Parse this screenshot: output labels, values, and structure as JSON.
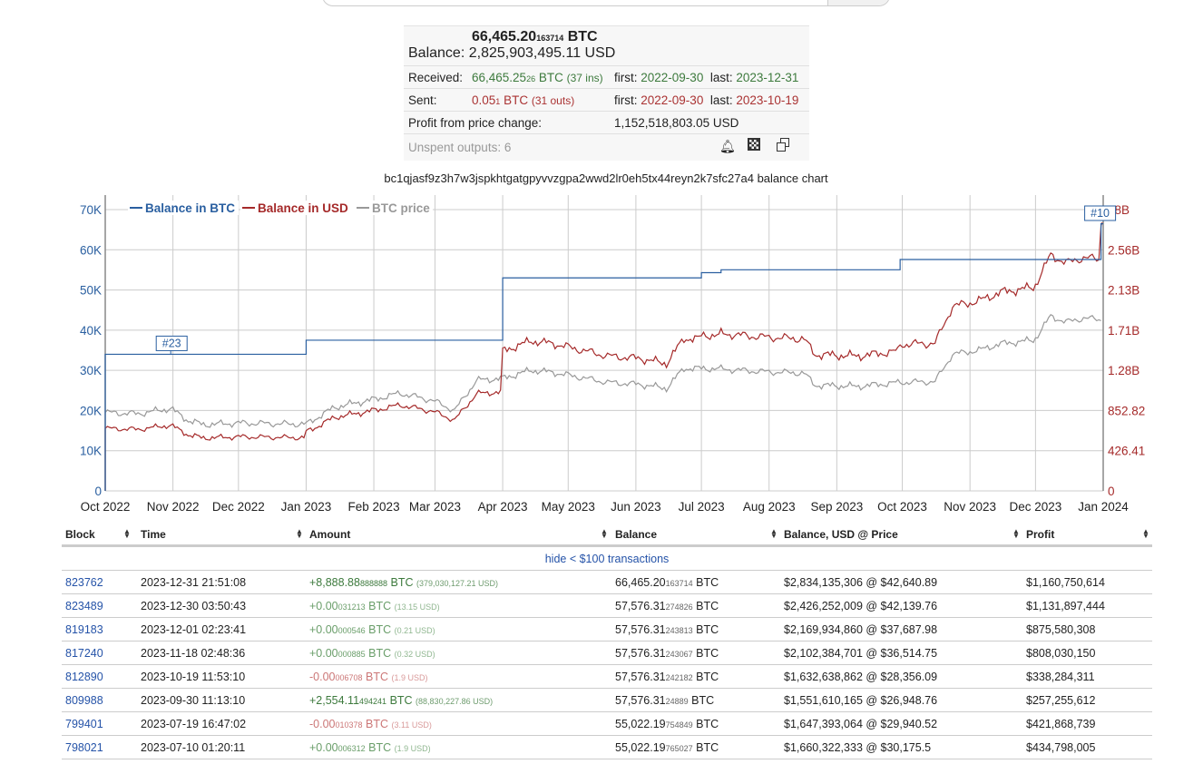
{
  "summary": {
    "balance_btc_main": "66,465.20",
    "balance_btc_small": "163714",
    "btc_unit": "BTC",
    "balance_label": "Balance:",
    "balance_usd": "2,825,903,495.11 USD",
    "received_label": "Received:",
    "received_main": "66,465.25",
    "received_small": "26",
    "received_unit": "BTC",
    "received_ins": "(37 ins)",
    "received_first_label": "first:",
    "received_first": "2022-09-30",
    "received_last_label": "last:",
    "received_last": "2023-12-31",
    "sent_label": "Sent:",
    "sent_main": "0.05",
    "sent_small": "1",
    "sent_unit": "BTC",
    "sent_outs": "(31 outs)",
    "sent_first_label": "first:",
    "sent_first": "2022-09-30",
    "sent_last_label": "last:",
    "sent_last": "2023-10-19",
    "profit_label": "Profit from price change:",
    "profit_value": "1,152,518,803.05 USD",
    "unspent": "Unspent outputs: 6",
    "icons": [
      "bell-icon",
      "qr-code-icon",
      "copy-icon"
    ]
  },
  "chart_title": "bc1qjasf9z3h7w3jspkhtgatgpyvvzgpa2wwd2lr0eh5tx44reyn2k7sfc27a4 balance chart",
  "chart_data": {
    "type": "line",
    "legend": [
      "Balance in BTC",
      "Balance in USD",
      "BTC price"
    ],
    "legend_position": "top-left",
    "colors": {
      "btc": "#2a5fa0",
      "usd": "#a52a2a",
      "price": "#999999"
    },
    "x_ticks": [
      "Oct 2022",
      "Nov 2022",
      "Dec 2022",
      "Jan 2023",
      "Feb 2023",
      "Mar 2023",
      "Apr 2023",
      "May 2023",
      "Jun 2023",
      "Jul 2023",
      "Aug 2023",
      "Sep 2023",
      "Oct 2023",
      "Nov 2023",
      "Dec 2023",
      "Jan 2024"
    ],
    "y_left_ticks": [
      "0",
      "10K",
      "20K",
      "30K",
      "40K",
      "50K",
      "60K",
      "70K"
    ],
    "y_right_ticks": [
      "0",
      "426.41",
      "852.82",
      "1.28B",
      "1.71B",
      "2.13B",
      "2.56B",
      "98B"
    ],
    "ylim_left": [
      0,
      70000
    ],
    "xlim_days": [
      0,
      457
    ],
    "annotations": [
      {
        "label": "#23",
        "day": 30
      },
      {
        "label": "#10",
        "day": 456
      }
    ],
    "balance_btc": [
      [
        0,
        0
      ],
      [
        0,
        34000
      ],
      [
        92,
        37500
      ],
      [
        182,
        53000
      ],
      [
        273,
        54300
      ],
      [
        282,
        55022
      ],
      [
        364,
        57576
      ],
      [
        456,
        66465
      ]
    ],
    "btc_price": [
      [
        0,
        19500
      ],
      [
        15,
        19200
      ],
      [
        30,
        20500
      ],
      [
        38,
        17500
      ],
      [
        45,
        16500
      ],
      [
        62,
        16900
      ],
      [
        80,
        16700
      ],
      [
        92,
        16600
      ],
      [
        105,
        20800
      ],
      [
        125,
        23000
      ],
      [
        135,
        24300
      ],
      [
        150,
        22500
      ],
      [
        160,
        20000
      ],
      [
        170,
        27500
      ],
      [
        182,
        28000
      ],
      [
        195,
        30000
      ],
      [
        205,
        29500
      ],
      [
        215,
        28500
      ],
      [
        230,
        27000
      ],
      [
        245,
        26500
      ],
      [
        257,
        25500
      ],
      [
        265,
        30500
      ],
      [
        280,
        30400
      ],
      [
        300,
        29700
      ],
      [
        320,
        29300
      ],
      [
        325,
        26300
      ],
      [
        345,
        26000
      ],
      [
        364,
        27000
      ],
      [
        380,
        27200
      ],
      [
        388,
        34000
      ],
      [
        400,
        35000
      ],
      [
        410,
        36600
      ],
      [
        425,
        37500
      ],
      [
        426,
        38000
      ],
      [
        433,
        43500
      ],
      [
        440,
        42000
      ],
      [
        448,
        43000
      ],
      [
        456,
        42640
      ]
    ],
    "usd_scale_note": "Balance in USD plotted on right axis"
  },
  "table": {
    "headers": [
      "Block",
      "Time",
      "Amount",
      "Balance",
      "Balance, USD @ Price",
      "Profit"
    ],
    "hide_link": "hide < $100 transactions",
    "rows": [
      {
        "block": "823762",
        "time": "2023-12-31 21:51:08",
        "amt_main": "+8,888.88",
        "amt_small": "888888",
        "amt_unit": "BTC",
        "amt_usd": "(379,030,127.21 USD)",
        "sign": "big",
        "bal_main": "66,465.20",
        "bal_small": "163714",
        "bal_unit": "BTC",
        "bal_usd": "$2,834,135,306 @ $42,640.89",
        "profit": "$1,160,750,614"
      },
      {
        "block": "823489",
        "time": "2023-12-30 03:50:43",
        "amt_main": "+0.00",
        "amt_small": "031213",
        "amt_unit": "BTC",
        "amt_usd": "(13.15 USD)",
        "sign": "pos",
        "bal_main": "57,576.31",
        "bal_small": "274826",
        "bal_unit": "BTC",
        "bal_usd": "$2,426,252,009 @ $42,139.76",
        "profit": "$1,131,897,444"
      },
      {
        "block": "819183",
        "time": "2023-12-01 02:23:41",
        "amt_main": "+0.00",
        "amt_small": "000546",
        "amt_unit": "BTC",
        "amt_usd": "(0.21 USD)",
        "sign": "pos",
        "bal_main": "57,576.31",
        "bal_small": "243813",
        "bal_unit": "BTC",
        "bal_usd": "$2,169,934,860 @ $37,687.98",
        "profit": "$875,580,308"
      },
      {
        "block": "817240",
        "time": "2023-11-18 02:48:36",
        "amt_main": "+0.00",
        "amt_small": "000885",
        "amt_unit": "BTC",
        "amt_usd": "(0.32 USD)",
        "sign": "pos",
        "bal_main": "57,576.31",
        "bal_small": "243067",
        "bal_unit": "BTC",
        "bal_usd": "$2,102,384,701 @ $36,514.75",
        "profit": "$808,030,150"
      },
      {
        "block": "812890",
        "time": "2023-10-19 11:53:10",
        "amt_main": "-0.00",
        "amt_small": "006708",
        "amt_unit": "BTC",
        "amt_usd": "(1.9 USD)",
        "sign": "neg",
        "bal_main": "57,576.31",
        "bal_small": "242182",
        "bal_unit": "BTC",
        "bal_usd": "$1,632,638,862 @ $28,356.09",
        "profit": "$338,284,311"
      },
      {
        "block": "809988",
        "time": "2023-09-30 11:13:10",
        "amt_main": "+2,554.11",
        "amt_small": "494241",
        "amt_unit": "BTC",
        "amt_usd": "(88,830,227.86 USD)",
        "sign": "big",
        "bal_main": "57,576.31",
        "bal_small": "24889",
        "bal_unit": "BTC",
        "bal_usd": "$1,551,610,165 @ $26,948.76",
        "profit": "$257,255,612"
      },
      {
        "block": "799401",
        "time": "2023-07-19 16:47:02",
        "amt_main": "-0.00",
        "amt_small": "010378",
        "amt_unit": "BTC",
        "amt_usd": "(3.11 USD)",
        "sign": "neg",
        "bal_main": "55,022.19",
        "bal_small": "754849",
        "bal_unit": "BTC",
        "bal_usd": "$1,647,393,064 @ $29,940.52",
        "profit": "$421,868,739"
      },
      {
        "block": "798021",
        "time": "2023-07-10 01:20:11",
        "amt_main": "+0.00",
        "amt_small": "006312",
        "amt_unit": "BTC",
        "amt_usd": "(1.9 USD)",
        "sign": "pos",
        "bal_main": "55,022.19",
        "bal_small": "765027",
        "bal_unit": "BTC",
        "bal_usd": "$1,660,322,333 @ $30,175.5",
        "profit": "$434,798,005"
      }
    ]
  }
}
